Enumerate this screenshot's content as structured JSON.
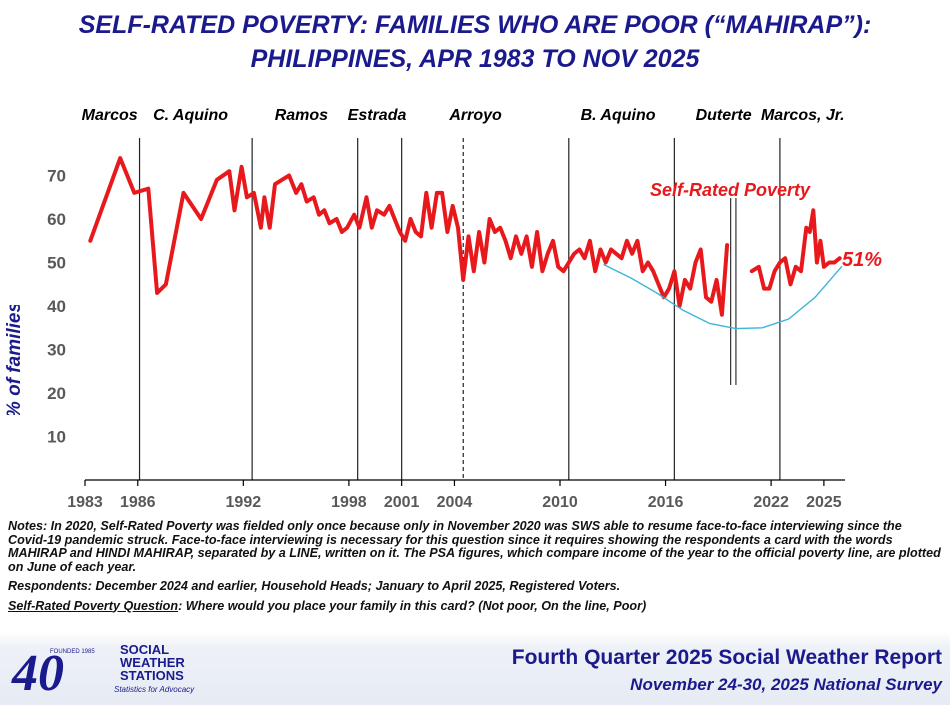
{
  "header": {
    "title_line1": "SELF-RATED POVERTY: FAMILIES WHO ARE POOR (“MAHIRAP”):",
    "title_line2": "PHILIPPINES, APR 1983 TO NOV 2025"
  },
  "chart_data": {
    "type": "line",
    "ylabel": "% of families",
    "ylim": [
      0,
      80
    ],
    "yticks": [
      10,
      20,
      30,
      40,
      50,
      60,
      70
    ],
    "xlim": [
      1983,
      2026.2
    ],
    "xtick_labels": [
      "1983",
      "1986",
      "1992",
      "1998",
      "2001",
      "2004",
      "2010",
      "2016",
      "2022",
      "2025"
    ],
    "presidents": [
      {
        "name": "Marcos",
        "x": 1984.4
      },
      {
        "name": "C. Aquino",
        "x": 1989.0
      },
      {
        "name": "Ramos",
        "x": 1995.3
      },
      {
        "name": "Estrada",
        "x": 1999.6
      },
      {
        "name": "Arroyo",
        "x": 2005.2
      },
      {
        "name": "B. Aquino",
        "x": 2013.3
      },
      {
        "name": "Duterte",
        "x": 2019.3
      },
      {
        "name": "Marcos, Jr.",
        "x": 2023.8
      }
    ],
    "term_lines": [
      {
        "x": 1986.1,
        "style": "solid"
      },
      {
        "x": 1992.5,
        "style": "solid"
      },
      {
        "x": 1998.5,
        "style": "solid"
      },
      {
        "x": 2001.0,
        "style": "solid"
      },
      {
        "x": 2004.5,
        "style": "dashed"
      },
      {
        "x": 2010.5,
        "style": "solid"
      },
      {
        "x": 2016.5,
        "style": "solid"
      },
      {
        "x": 2022.5,
        "style": "solid"
      }
    ],
    "series": [
      {
        "name": "Self-Rated Poverty",
        "color": "#e8191c",
        "x": [
          1983.3,
          1985.0,
          1985.8,
          1986.6,
          1987.1,
          1987.6,
          1988.6,
          1989.6,
          1990.5,
          1991.2,
          1991.5,
          1991.9,
          1992.2,
          1992.6,
          1993.0,
          1993.2,
          1993.5,
          1993.8,
          1994.2,
          1994.6,
          1995.0,
          1995.3,
          1995.6,
          1996.0,
          1996.3,
          1996.6,
          1996.9,
          1997.3,
          1997.6,
          1997.9,
          1998.3,
          1998.6,
          1999.0,
          1999.3,
          1999.6,
          2000.0,
          2000.3,
          2000.6,
          2000.9,
          2001.2,
          2001.5,
          2001.8,
          2002.1,
          2002.4,
          2002.7,
          2003.0,
          2003.3,
          2003.6,
          2003.9,
          2004.2,
          2004.5,
          2004.8,
          2005.1,
          2005.4,
          2005.7,
          2006.0,
          2006.3,
          2006.6,
          2006.9,
          2007.2,
          2007.5,
          2007.8,
          2008.1,
          2008.4,
          2008.7,
          2009.0,
          2009.3,
          2009.6,
          2009.9,
          2010.2,
          2010.5,
          2010.8,
          2011.1,
          2011.4,
          2011.7,
          2012.0,
          2012.3,
          2012.6,
          2012.9,
          2013.2,
          2013.5,
          2013.8,
          2014.1,
          2014.4,
          2014.7,
          2015.0,
          2015.3,
          2015.6,
          2015.9,
          2016.2,
          2016.5,
          2016.8,
          2017.1,
          2017.4,
          2017.7,
          2018.0,
          2018.3,
          2018.6,
          2018.9,
          2019.2,
          2019.5
        ],
        "y": [
          55,
          74,
          66,
          67,
          43,
          45,
          66,
          60,
          69,
          71,
          62,
          72,
          65,
          66,
          58,
          65,
          58,
          68,
          69,
          70,
          66,
          68,
          64,
          65,
          61,
          62,
          59,
          60,
          57,
          58,
          61,
          58,
          65,
          58,
          62,
          61,
          63,
          60,
          57,
          55,
          60,
          57,
          56,
          66,
          58,
          66,
          66,
          57,
          63,
          58,
          46,
          56,
          48,
          57,
          50,
          60,
          57,
          58,
          55,
          51,
          56,
          52,
          56,
          49,
          57,
          48,
          52,
          55,
          49,
          48,
          50,
          52,
          53,
          51,
          55,
          48,
          53,
          50,
          53,
          52,
          51,
          55,
          52,
          55,
          48,
          50,
          48,
          45,
          42,
          44,
          48,
          40,
          46,
          44,
          50,
          53,
          42,
          41,
          46,
          38,
          54
        ]
      },
      {
        "name": "Self-Rated Poverty (2020-2025)",
        "color": "#e8191c",
        "x": [
          2020.9,
          2021.3,
          2021.6,
          2021.9,
          2022.2,
          2022.5,
          2022.8,
          2023.1,
          2023.4,
          2023.7,
          2024.0,
          2024.2,
          2024.4,
          2024.6,
          2024.8,
          2025.0,
          2025.3,
          2025.6,
          2025.9
        ],
        "y": [
          48,
          49,
          44,
          44,
          48,
          50,
          51,
          45,
          49,
          48,
          58,
          57,
          62,
          50,
          55,
          49,
          50,
          50,
          51
        ]
      },
      {
        "name": "PSA trend",
        "color": "#3bb5d9",
        "x": [
          2012.5,
          2014.0,
          2015.5,
          2017.0,
          2018.5,
          2020.0,
          2021.5,
          2023.0,
          2024.5,
          2026.0
        ],
        "y": [
          49.5,
          46.5,
          43.0,
          39.0,
          36.0,
          34.8,
          35.0,
          37.0,
          42.0,
          49.0
        ]
      }
    ],
    "pandemic_marker_x": [
      2019.7,
      2020.0
    ],
    "series_label": "Self-Rated Poverty",
    "latest_label": "51%"
  },
  "notes": {
    "note1": "Notes: In 2020, Self-Rated Poverty was fielded only once because only in November 2020 was SWS able to resume face-to-face interviewing since the Covid-19 pandemic struck. Face-to-face interviewing is necessary for this question since it requires showing the respondents a card with the words MAHIRAP and HINDI MAHIRAP, separated by a LINE, written on it. The PSA figures, which compare income of the year to the official poverty line, are plotted on June of each year.",
    "note2": "Respondents: December 2024 and earlier, Household Heads; January to April 2025, Registered Voters.",
    "question_label": "Self-Rated Poverty Question",
    "question_text": ":  Where would you place your family in this card?  (Not poor, On the line, Poor)"
  },
  "footer": {
    "logo_number": "40",
    "logo_name_line1": "SOCIAL",
    "logo_name_line2": "WEATHER",
    "logo_name_line3": "STATIONS",
    "logo_tagline": "Statistics for Advocacy",
    "logo_years": "FOUNDED 1985",
    "report_title": "Fourth Quarter 2025 Social Weather Report",
    "survey_dates": "November 24-30, 2025 National Survey"
  }
}
